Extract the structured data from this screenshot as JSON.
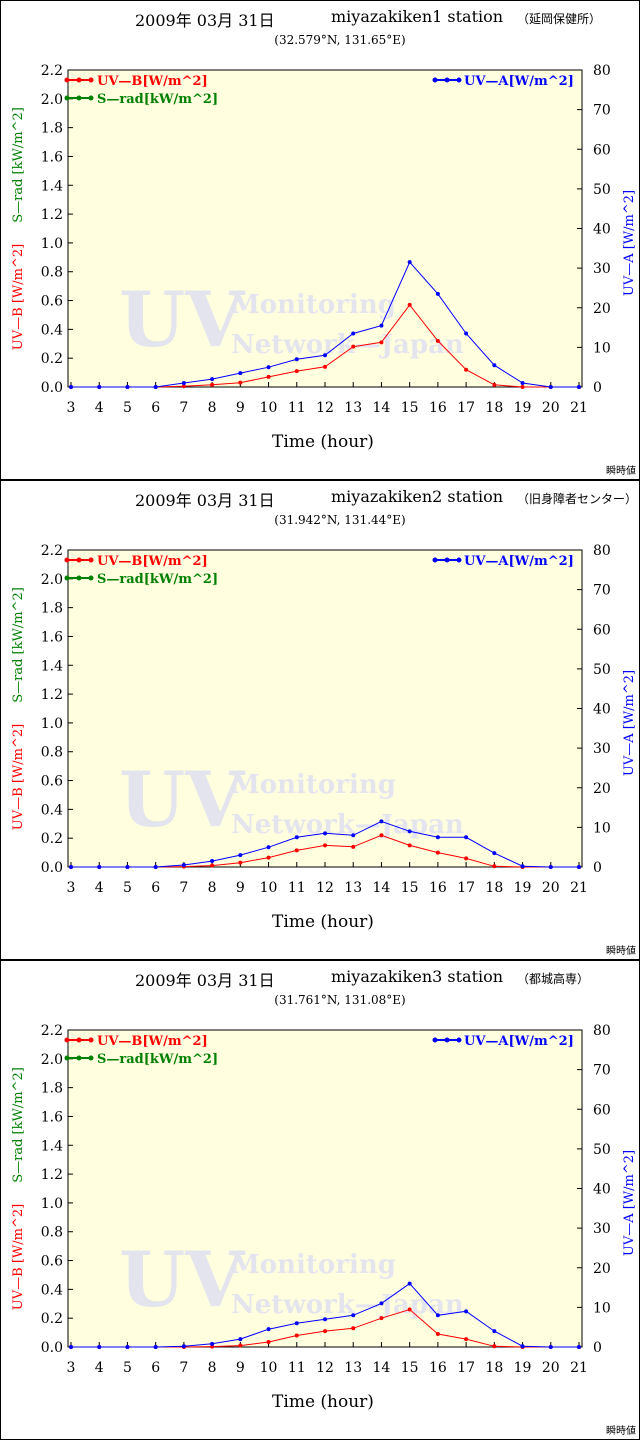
{
  "panels": [
    {
      "date": "2009年 03月 31日",
      "station": "miyazakiken1 station",
      "place": "（延岡保健所）",
      "coords": "(32.579°N, 131.65°E)",
      "instant": "瞬時値"
    },
    {
      "date": "2009年 03月 31日",
      "station": "miyazakiken2 station",
      "place": "（旧身障者センター）",
      "coords": "(31.942°N, 131.44°E)",
      "instant": "瞬時値"
    },
    {
      "date": "2009年 03月 31日",
      "station": "miyazakiken3 station",
      "place": "（都城高専）",
      "coords": "(31.761°N, 131.08°E)",
      "instant": "瞬時値"
    }
  ],
  "watermark": {
    "big": "UV",
    "line1": "Monitoring",
    "line2": "Network—Japan"
  },
  "colors": {
    "uvb": "#ff0000",
    "srad": "#008000",
    "uva": "#0000ff",
    "plot_bg": "#ffffe0",
    "watermark": "#e4e4ee"
  },
  "chart_data": [
    {
      "type": "line",
      "x": [
        3,
        4,
        5,
        6,
        7,
        8,
        9,
        10,
        11,
        12,
        13,
        14,
        15,
        16,
        17,
        18,
        19,
        20,
        21
      ],
      "xlabel": "Time (hour)",
      "ylabel_left_uvb": "UV—B [W/m^2]",
      "ylabel_left_srad": "S—rad [kW/m^2]",
      "ylabel_right": "UV—A [W/m^2]",
      "ylim_left": [
        0,
        2.2
      ],
      "ylim_right": [
        0,
        80
      ],
      "yticks_left": [
        "0.0",
        "0.2",
        "0.4",
        "0.6",
        "0.8",
        "1.0",
        "1.2",
        "1.4",
        "1.6",
        "1.8",
        "2.0",
        "2.2"
      ],
      "yticks_right": [
        "0",
        "10",
        "20",
        "30",
        "40",
        "50",
        "60",
        "70",
        "80"
      ],
      "legend_left": [
        "UV—B[W/m^2]",
        "S—rad[kW/m^2]"
      ],
      "legend_right": [
        "UV—A[W/m^2]"
      ],
      "series": [
        {
          "name": "UV—B[W/m^2]",
          "axis": "left",
          "values": [
            0,
            0,
            0,
            0,
            0.005,
            0.015,
            0.03,
            0.07,
            0.11,
            0.14,
            0.28,
            0.31,
            0.57,
            0.32,
            0.12,
            0.015,
            0,
            0,
            0
          ]
        },
        {
          "name": "UV—A[W/m^2]",
          "axis": "right",
          "values": [
            0,
            0,
            0,
            0,
            1,
            2,
            3.5,
            5,
            7,
            8,
            13.5,
            15.5,
            31.5,
            23.5,
            13.5,
            5.5,
            1,
            0,
            0
          ]
        }
      ]
    },
    {
      "type": "line",
      "x": [
        3,
        4,
        5,
        6,
        7,
        8,
        9,
        10,
        11,
        12,
        13,
        14,
        15,
        16,
        17,
        18,
        19,
        20,
        21
      ],
      "xlabel": "Time (hour)",
      "ylabel_left_uvb": "UV—B [W/m^2]",
      "ylabel_left_srad": "S—rad [kW/m^2]",
      "ylabel_right": "UV—A [W/m^2]",
      "ylim_left": [
        0,
        2.2
      ],
      "ylim_right": [
        0,
        80
      ],
      "yticks_left": [
        "0.0",
        "0.2",
        "0.4",
        "0.6",
        "0.8",
        "1.0",
        "1.2",
        "1.4",
        "1.6",
        "1.8",
        "2.0",
        "2.2"
      ],
      "yticks_right": [
        "0",
        "10",
        "20",
        "30",
        "40",
        "50",
        "60",
        "70",
        "80"
      ],
      "legend_left": [
        "UV—B[W/m^2]",
        "S—rad[kW/m^2]"
      ],
      "legend_right": [
        "UV—A[W/m^2]"
      ],
      "series": [
        {
          "name": "UV—B[W/m^2]",
          "axis": "left",
          "values": [
            0,
            0,
            0,
            0,
            0.003,
            0.01,
            0.03,
            0.065,
            0.115,
            0.15,
            0.14,
            0.22,
            0.15,
            0.1,
            0.06,
            0.005,
            0,
            0,
            0
          ]
        },
        {
          "name": "UV—A[W/m^2]",
          "axis": "right",
          "values": [
            0,
            0,
            0,
            0,
            0.5,
            1.5,
            3,
            5,
            7.5,
            8.5,
            8,
            11.5,
            9,
            7.5,
            7.5,
            3.5,
            0.2,
            0,
            0
          ]
        }
      ]
    },
    {
      "type": "line",
      "x": [
        3,
        4,
        5,
        6,
        7,
        8,
        9,
        10,
        11,
        12,
        13,
        14,
        15,
        16,
        17,
        18,
        19,
        20,
        21
      ],
      "xlabel": "Time (hour)",
      "ylabel_left_uvb": "UV—B [W/m^2]",
      "ylabel_left_srad": "S—rad [kW/m^2]",
      "ylabel_right": "UV—A [W/m^2]",
      "ylim_left": [
        0,
        2.2
      ],
      "ylim_right": [
        0,
        80
      ],
      "yticks_left": [
        "0.0",
        "0.2",
        "0.4",
        "0.6",
        "0.8",
        "1.0",
        "1.2",
        "1.4",
        "1.6",
        "1.8",
        "2.0",
        "2.2"
      ],
      "yticks_right": [
        "0",
        "10",
        "20",
        "30",
        "40",
        "50",
        "60",
        "70",
        "80"
      ],
      "legend_left": [
        "UV—B[W/m^2]",
        "S—rad[kW/m^2]"
      ],
      "legend_right": [
        "UV—A[W/m^2]"
      ],
      "series": [
        {
          "name": "UV—B[W/m^2]",
          "axis": "left",
          "values": [
            0,
            0,
            0,
            0,
            0,
            0.003,
            0.01,
            0.035,
            0.08,
            0.11,
            0.13,
            0.2,
            0.26,
            0.09,
            0.055,
            0.005,
            0,
            0,
            0
          ]
        },
        {
          "name": "UV—A[W/m^2]",
          "axis": "right",
          "values": [
            0,
            0,
            0,
            0,
            0.2,
            0.8,
            2,
            4.5,
            6,
            7,
            8,
            11,
            16,
            8,
            9,
            4,
            0.2,
            0,
            0
          ]
        }
      ]
    }
  ]
}
